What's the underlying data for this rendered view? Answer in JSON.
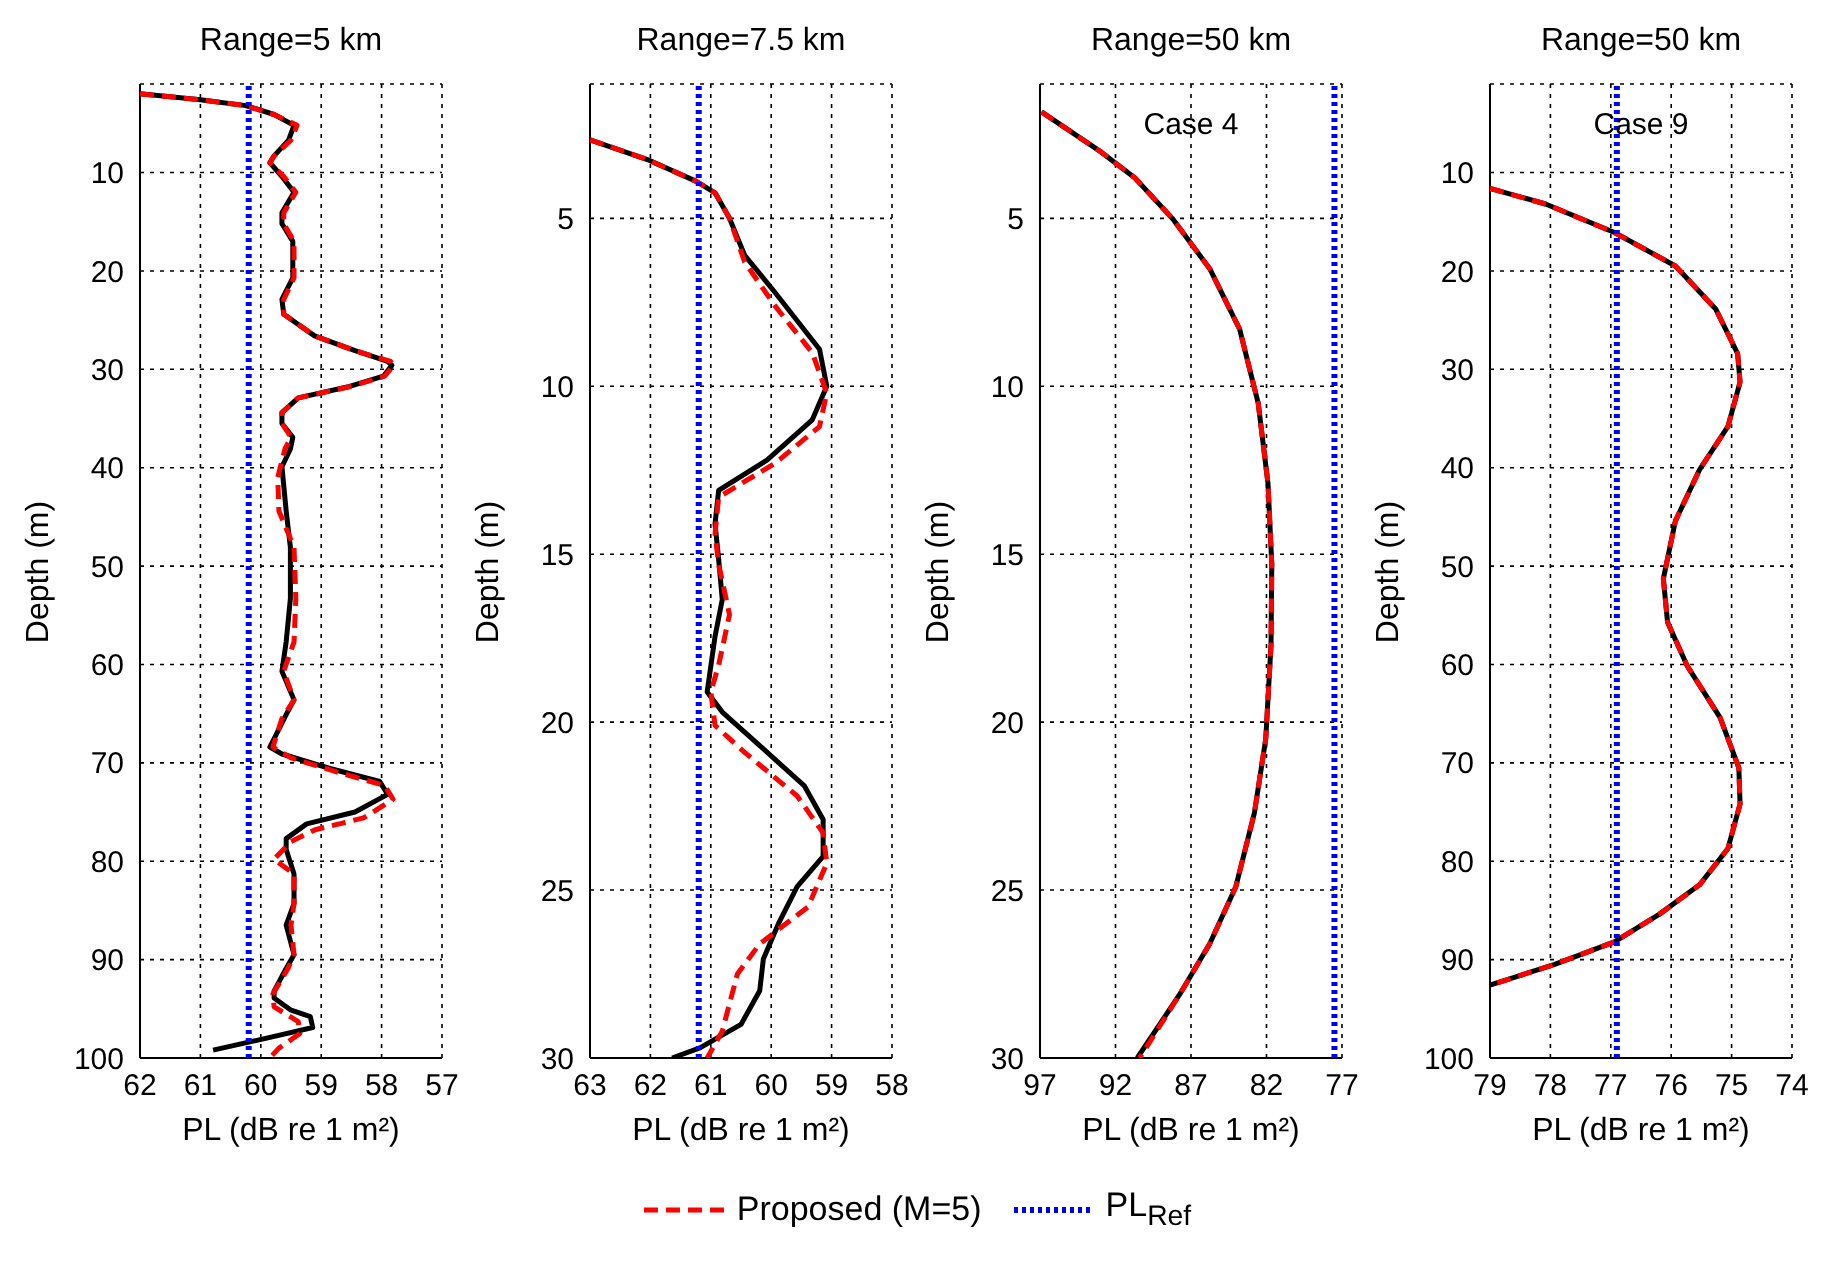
{
  "chart_data": [
    {
      "type": "line",
      "title": "Range=5 km",
      "xlabel": "PL (dB re 1 m²)",
      "ylabel": "Depth (m)",
      "xlim": [
        62,
        57
      ],
      "xticks": [
        62,
        61,
        60,
        59,
        58,
        57
      ],
      "ylim": [
        100,
        1
      ],
      "yticks": [
        10,
        20,
        30,
        40,
        50,
        60,
        70,
        80,
        90,
        100
      ],
      "grid": true,
      "legend": "bottom",
      "series": [
        {
          "color": "#000000",
          "line_style": "solid",
          "x": [
            62,
            61,
            60.25,
            59.78,
            59.45,
            59.54,
            59.78,
            59.85,
            59.65,
            59.45,
            59.65,
            59.65,
            59.47,
            59.47,
            59.65,
            59.62,
            59.11,
            58.44,
            57.9,
            57.83,
            57.97,
            58.57,
            59.38,
            59.65,
            59.65,
            59.47,
            59.51,
            59.65,
            59.58,
            59.51,
            59.51,
            59.58,
            59.65,
            59.45,
            59.58,
            59.85,
            59.65,
            58.84,
            58.03,
            57.9,
            58.44,
            59.24,
            59.58,
            59.58,
            59.45,
            59.45,
            59.58,
            59.45,
            59.58,
            59.78,
            59.78,
            59.51,
            59.18,
            59.14,
            59.92,
            60.79
          ],
          "values": [
            2,
            2.6,
            3.2,
            4.1,
            5.2,
            6.7,
            8.3,
            9,
            10.4,
            12,
            14.1,
            15.2,
            17,
            20.7,
            22.9,
            24.4,
            26.6,
            28.1,
            29.2,
            29.6,
            30.7,
            31.8,
            32.9,
            34.4,
            35.5,
            36.9,
            38.1,
            39.9,
            44.4,
            48.1,
            53.3,
            57.7,
            60.7,
            63.6,
            65.1,
            68.4,
            69.1,
            70.6,
            71.9,
            73.2,
            75,
            76.2,
            77.7,
            78.8,
            81.3,
            84.3,
            86.5,
            89.5,
            90.9,
            93.2,
            93.9,
            95.1,
            95.8,
            96.9,
            98,
            99.2
          ]
        },
        {
          "name": "Proposed (M=5)",
          "color": "#ff0000",
          "line_style": "dashed",
          "x": [
            62,
            61,
            60.25,
            59.78,
            59.4,
            59.5,
            59.78,
            59.85,
            59.62,
            59.42,
            59.62,
            59.62,
            59.45,
            59.45,
            59.62,
            59.62,
            59.11,
            58.44,
            57.85,
            57.8,
            57.95,
            58.55,
            59.38,
            59.65,
            59.65,
            59.5,
            59.6,
            59.72,
            59.7,
            59.45,
            59.42,
            59.45,
            59.62,
            59.45,
            59.65,
            59.8,
            59.5,
            58.7,
            57.95,
            57.81,
            58.3,
            59.1,
            59.5,
            59.78,
            59.45,
            59.45,
            59.5,
            59.45,
            59.55,
            59.8,
            59.78,
            59.38,
            59.35,
            59.7,
            59.85
          ],
          "values": [
            2,
            2.6,
            3.2,
            4.1,
            5.2,
            6.7,
            8.3,
            9,
            10.4,
            12,
            14.1,
            15.2,
            17,
            20.7,
            22.9,
            24.4,
            26.6,
            28.1,
            29.2,
            29.6,
            30.7,
            31.8,
            32.9,
            34.4,
            35.5,
            36.9,
            38.1,
            41,
            44.4,
            48.1,
            53.3,
            57.7,
            60.7,
            63.6,
            65.5,
            68.4,
            69.5,
            71,
            72.3,
            73.7,
            75.6,
            76.8,
            78,
            79.8,
            81.3,
            84.3,
            86.5,
            89.5,
            90.9,
            93.5,
            94.8,
            96.3,
            97.5,
            99,
            100
          ]
        },
        {
          "name": "PL$_{Ref}$",
          "color": "#0000ff",
          "line_style": "dotted",
          "x": [
            60.2,
            60.2
          ],
          "values": [
            100,
            1
          ]
        }
      ]
    },
    {
      "type": "line",
      "title": "Range=7.5 km",
      "xlabel": "PL (dB re 1 m²)",
      "ylabel": "Depth (m)",
      "xlim": [
        63,
        58
      ],
      "xticks": [
        63,
        62,
        61,
        60,
        59,
        58
      ],
      "ylim": [
        30,
        1
      ],
      "yticks": [
        5,
        10,
        15,
        20,
        25,
        30
      ],
      "grid": true,
      "series": [
        {
          "color": "#000000",
          "line_style": "solid",
          "x": [
            63,
            62.05,
            61.24,
            60.93,
            60.69,
            60.44,
            59.94,
            59.2,
            59.08,
            59.32,
            60.07,
            60.87,
            60.93,
            60.87,
            60.81,
            60.93,
            61.06,
            60.81,
            60.19,
            59.45,
            59.14,
            59.14,
            59.57,
            59.88,
            60.13,
            60.19,
            60.5,
            61.18,
            61.64
          ],
          "values": [
            2.66,
            3.25,
            3.9,
            4.24,
            5,
            6.1,
            7.2,
            8.9,
            10,
            11,
            12.2,
            13.1,
            14.1,
            15.15,
            16.35,
            17.45,
            19.1,
            19.7,
            20.7,
            21.9,
            22.9,
            24,
            24.9,
            26,
            27.05,
            28,
            29,
            29.7,
            30
          ]
        },
        {
          "color": "#ff0000",
          "line_style": "dashed",
          "x": [
            63,
            62.05,
            61.24,
            60.93,
            60.69,
            60.44,
            59.94,
            59.32,
            59.08,
            59.2,
            59.94,
            60.87,
            60.93,
            60.87,
            60.69,
            60.87,
            61,
            60.93,
            60.44,
            59.57,
            59.14,
            59.08,
            59.39,
            60.19,
            60.56,
            60.81,
            61.06
          ],
          "values": [
            2.66,
            3.25,
            3.9,
            4.24,
            5,
            6.3,
            7.6,
            9,
            10.2,
            11.2,
            12.3,
            13.3,
            14.4,
            15.3,
            16.8,
            18.3,
            19.1,
            20.1,
            20.9,
            22.2,
            23.3,
            24.2,
            25.5,
            26.6,
            27.5,
            29.2,
            30
          ]
        },
        {
          "color": "#0000ff",
          "line_style": "dotted",
          "x": [
            61.2,
            61.2
          ],
          "values": [
            30,
            1
          ]
        }
      ]
    },
    {
      "type": "line",
      "title": "Range=50 km",
      "xlabel": "PL (dB re 1 m²)",
      "ylabel": "Depth (m)",
      "annotations": [
        "Case 4"
      ],
      "xlim": [
        97,
        77
      ],
      "xticks": [
        97,
        92,
        87,
        82,
        77
      ],
      "ylim": [
        30,
        1
      ],
      "yticks": [
        5,
        10,
        15,
        20,
        25,
        30
      ],
      "grid": true,
      "series": [
        {
          "color": "#000000",
          "line_style": "solid",
          "x": [
            96.9,
            92.94,
            90.71,
            88.24,
            85.76,
            83.78,
            82.55,
            81.9,
            81.65,
            81.7,
            82.05,
            82.8,
            84.03,
            85.76,
            87.74,
            90.56
          ],
          "values": [
            1.83,
            3.03,
            3.8,
            5,
            6.5,
            8.3,
            10.5,
            12.9,
            15.3,
            17.7,
            20.5,
            22.7,
            24.9,
            26.6,
            28.1,
            30
          ]
        },
        {
          "color": "#ff0000",
          "line_style": "dashed",
          "x": [
            96.9,
            92.94,
            90.71,
            88.24,
            85.76,
            83.78,
            82.55,
            81.9,
            81.65,
            81.7,
            82.05,
            82.8,
            84.03,
            85.76,
            87.74,
            90.4
          ],
          "values": [
            1.83,
            3.03,
            3.8,
            5,
            6.5,
            8.3,
            10.5,
            12.9,
            15.3,
            17.7,
            20.5,
            22.7,
            24.9,
            26.6,
            28.1,
            30
          ]
        },
        {
          "color": "#0000ff",
          "line_style": "dotted",
          "x": [
            77.5,
            77.5
          ],
          "values": [
            30,
            1
          ]
        }
      ]
    },
    {
      "type": "line",
      "title": "Range=50 km",
      "xlabel": "PL (dB re 1 m²)",
      "ylabel": "Depth (m)",
      "annotations": [
        "Case 9"
      ],
      "xlim": [
        79,
        74
      ],
      "xticks": [
        79,
        78,
        77,
        76,
        75,
        74
      ],
      "ylim": [
        100,
        1
      ],
      "yticks": [
        10,
        20,
        30,
        40,
        50,
        60,
        70,
        80,
        90,
        100
      ],
      "grid": true,
      "series": [
        {
          "color": "#000000",
          "line_style": "solid",
          "x": [
            79,
            78.08,
            76.94,
            75.93,
            75.26,
            74.9,
            74.86,
            75.06,
            75.53,
            75.93,
            76.13,
            76.06,
            75.73,
            75.19,
            74.88,
            74.86,
            75.06,
            75.53,
            76.2,
            76.94,
            77.94,
            79
          ],
          "values": [
            11.6,
            13.2,
            16.1,
            19.5,
            23.9,
            28.4,
            31.3,
            35.8,
            40.2,
            45.4,
            51.3,
            55.7,
            60.2,
            65.4,
            70.5,
            74.2,
            78.7,
            82.4,
            85.4,
            88.2,
            90.5,
            92.6
          ]
        },
        {
          "color": "#ff0000",
          "line_style": "dashed",
          "x": [
            79,
            78.08,
            76.94,
            75.93,
            75.26,
            74.9,
            74.86,
            75.06,
            75.53,
            75.93,
            76.13,
            76.06,
            75.73,
            75.19,
            74.88,
            74.86,
            75.06,
            75.53,
            76.2,
            76.94,
            77.94,
            79
          ],
          "values": [
            11.6,
            13.2,
            16.1,
            19.5,
            23.9,
            28.4,
            31.3,
            35.8,
            40.2,
            45.4,
            51.3,
            55.7,
            60.2,
            65.4,
            70.5,
            74.2,
            78.7,
            82.4,
            85.4,
            88.2,
            90.5,
            92.6
          ]
        },
        {
          "color": "#0000ff",
          "line_style": "dotted",
          "x": [
            76.9,
            76.9
          ],
          "values": [
            100,
            1
          ]
        }
      ]
    }
  ]
}
